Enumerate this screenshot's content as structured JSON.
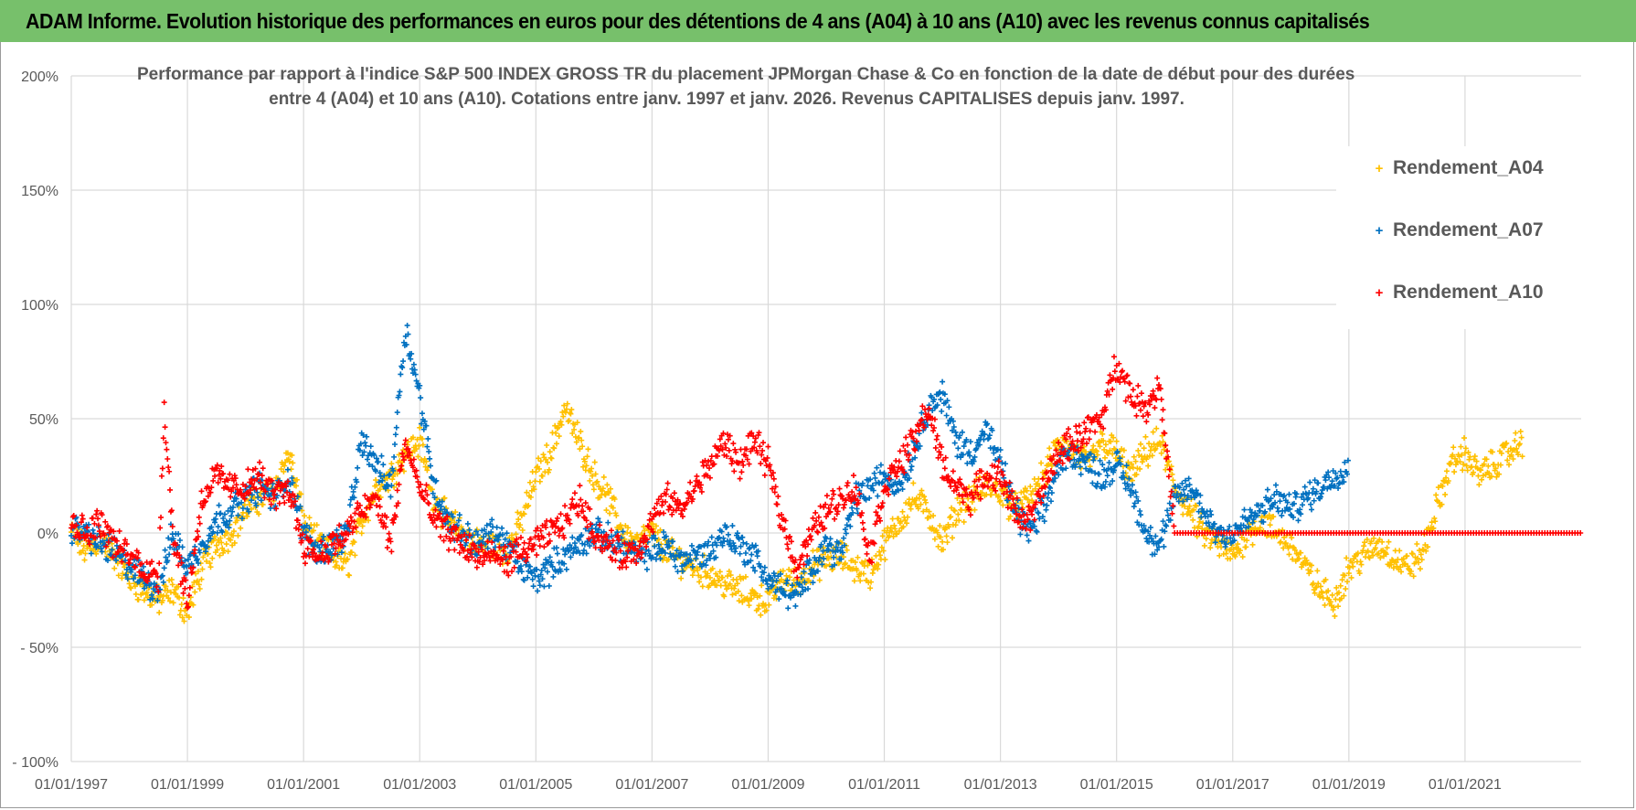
{
  "banner": {
    "title": "ADAM Informe. Evolution historique des performances en euros pour des détentions de 4 ans (A04) à 10 ans (A10) avec les revenus connus capitalisés"
  },
  "colors": {
    "banner_bg": "#77c06b",
    "A04": "#ffc000",
    "A07": "#0070c0",
    "A10": "#ff0000",
    "grid": "#d9d9d9",
    "text": "#595959"
  },
  "chart_data": {
    "type": "scatter",
    "title_line1": "Performance par rapport à l'indice S&P 500 INDEX GROSS TR  du placement JPMorgan Chase & Co en fonction de la date de début pour des durées",
    "title_line2": "entre 4 (A04) et 10 ans (A10).  Cotations entre janv. 1997 et janv. 2026. Revenus CAPITALISES depuis janv. 1997.",
    "xlabel": "",
    "ylabel": "",
    "x_range": [
      1997.0,
      2023.0
    ],
    "ylim": [
      -100,
      200
    ],
    "y_ticks": [
      -100,
      -50,
      0,
      50,
      100,
      150,
      200
    ],
    "y_tick_labels": [
      "- 100%",
      "- 50%",
      "0%",
      "50%",
      "100%",
      "150%",
      "200%"
    ],
    "x_ticks": [
      1997,
      1999,
      2001,
      2003,
      2005,
      2007,
      2009,
      2011,
      2013,
      2015,
      2017,
      2019,
      2021
    ],
    "x_tick_labels": [
      "01/01/1997",
      "01/01/1999",
      "01/01/2001",
      "01/01/2003",
      "01/01/2005",
      "01/01/2007",
      "01/01/2009",
      "01/01/2011",
      "01/01/2013",
      "01/01/2015",
      "01/01/2017",
      "01/01/2019",
      "01/01/2021"
    ],
    "legend_position": "top-right",
    "series": [
      {
        "name": "Rendement_A04",
        "color": "#ffc000",
        "x": [
          1997.0,
          1997.25,
          1997.5,
          1997.75,
          1998.0,
          1998.25,
          1998.5,
          1998.75,
          1999.0,
          1999.25,
          1999.5,
          1999.75,
          2000.0,
          2000.25,
          2000.5,
          2000.75,
          2001.0,
          2001.25,
          2001.5,
          2001.75,
          2002.0,
          2002.25,
          2002.5,
          2002.75,
          2003.0,
          2003.25,
          2003.5,
          2003.75,
          2004.0,
          2004.25,
          2004.5,
          2004.75,
          2005.0,
          2005.25,
          2005.5,
          2005.75,
          2006.0,
          2006.25,
          2006.5,
          2006.75,
          2007.0,
          2007.25,
          2007.5,
          2007.75,
          2008.0,
          2008.25,
          2008.5,
          2008.75,
          2009.0,
          2009.25,
          2009.5,
          2009.75,
          2010.0,
          2010.25,
          2010.5,
          2010.75,
          2011.0,
          2011.25,
          2011.5,
          2011.75,
          2012.0,
          2012.25,
          2012.5,
          2012.75,
          2013.0,
          2013.25,
          2013.5,
          2013.75,
          2014.0,
          2014.25,
          2014.5,
          2014.75,
          2015.0,
          2015.25,
          2015.5,
          2015.75,
          2016.0,
          2016.25,
          2016.5,
          2016.75,
          2017.0,
          2017.25,
          2017.5,
          2017.75,
          2018.0,
          2018.25,
          2018.5,
          2018.75,
          2019.0,
          2019.25,
          2019.5,
          2019.75,
          2020.0,
          2020.25,
          2020.5,
          2020.75,
          2021.0,
          2021.25,
          2021.5,
          2021.75,
          2022.0
        ],
        "y": [
          0,
          -8,
          -3,
          -10,
          -20,
          -25,
          -30,
          -25,
          -35,
          -15,
          -5,
          0,
          10,
          15,
          20,
          35,
          5,
          -5,
          -10,
          -15,
          5,
          20,
          25,
          35,
          40,
          15,
          5,
          0,
          -5,
          -5,
          -8,
          5,
          25,
          35,
          55,
          40,
          25,
          15,
          0,
          -5,
          0,
          -8,
          -12,
          -15,
          -18,
          -22,
          -25,
          -28,
          -30,
          -20,
          -22,
          -15,
          -12,
          -10,
          -15,
          -18,
          -5,
          5,
          15,
          10,
          -5,
          10,
          15,
          20,
          18,
          10,
          15,
          25,
          40,
          35,
          30,
          40,
          35,
          25,
          35,
          40,
          20,
          10,
          0,
          -5,
          -10,
          0,
          5,
          0,
          -5,
          -15,
          -25,
          -30,
          -15,
          -10,
          -5,
          -10,
          -15,
          -10,
          10,
          30,
          35,
          25,
          30,
          35,
          40
        ]
      },
      {
        "name": "Rendement_A07",
        "color": "#0070c0",
        "x": [
          1997.0,
          1997.25,
          1997.5,
          1997.75,
          1998.0,
          1998.25,
          1998.5,
          1998.75,
          1999.0,
          1999.25,
          1999.5,
          1999.75,
          2000.0,
          2000.25,
          2000.5,
          2000.75,
          2001.0,
          2001.25,
          2001.5,
          2001.75,
          2002.0,
          2002.25,
          2002.5,
          2002.75,
          2003.0,
          2003.25,
          2003.5,
          2003.75,
          2004.0,
          2004.25,
          2004.5,
          2004.75,
          2005.0,
          2005.25,
          2005.5,
          2005.75,
          2006.0,
          2006.25,
          2006.5,
          2006.75,
          2007.0,
          2007.25,
          2007.5,
          2007.75,
          2008.0,
          2008.25,
          2008.5,
          2008.75,
          2009.0,
          2009.25,
          2009.5,
          2009.75,
          2010.0,
          2010.25,
          2010.5,
          2010.75,
          2011.0,
          2011.25,
          2011.5,
          2011.75,
          2012.0,
          2012.25,
          2012.5,
          2012.75,
          2013.0,
          2013.25,
          2013.5,
          2013.75,
          2014.0,
          2014.25,
          2014.5,
          2014.75,
          2015.0,
          2015.25,
          2015.5,
          2015.75,
          2016.0,
          2016.25,
          2016.5,
          2016.75,
          2017.0,
          2017.25,
          2017.5,
          2017.75,
          2018.0,
          2018.25,
          2018.5,
          2018.75,
          2019.0
        ],
        "y": [
          2,
          0,
          -5,
          -8,
          -15,
          -20,
          -25,
          0,
          -15,
          -5,
          5,
          10,
          15,
          20,
          15,
          25,
          0,
          -8,
          -5,
          0,
          40,
          30,
          20,
          90,
          60,
          20,
          5,
          0,
          -5,
          0,
          -5,
          -15,
          -20,
          -15,
          -10,
          -5,
          0,
          -3,
          -5,
          -10,
          -8,
          -5,
          -12,
          -10,
          -8,
          0,
          -5,
          -10,
          -20,
          -25,
          -28,
          -15,
          -5,
          -10,
          15,
          20,
          25,
          20,
          35,
          55,
          60,
          40,
          35,
          45,
          30,
          10,
          0,
          10,
          30,
          35,
          30,
          25,
          30,
          20,
          0,
          -5,
          15,
          20,
          10,
          0,
          0,
          5,
          10,
          15,
          10,
          15,
          20,
          25,
          30
        ]
      },
      {
        "name": "Rendement_A10",
        "color": "#ff0000",
        "x": [
          1997.0,
          1997.25,
          1997.5,
          1997.75,
          1998.0,
          1998.25,
          1998.5,
          1998.6,
          1998.75,
          1999.0,
          1999.25,
          1999.5,
          1999.75,
          2000.0,
          2000.25,
          2000.5,
          2000.75,
          2001.0,
          2001.25,
          2001.5,
          2001.75,
          2002.0,
          2002.25,
          2002.5,
          2002.75,
          2003.0,
          2003.25,
          2003.5,
          2003.75,
          2004.0,
          2004.25,
          2004.5,
          2004.75,
          2005.0,
          2005.25,
          2005.5,
          2005.75,
          2006.0,
          2006.25,
          2006.5,
          2006.75,
          2007.0,
          2007.25,
          2007.5,
          2007.75,
          2008.0,
          2008.25,
          2008.5,
          2008.75,
          2009.0,
          2009.25,
          2009.5,
          2009.75,
          2010.0,
          2010.25,
          2010.5,
          2010.75,
          2011.0,
          2011.25,
          2011.5,
          2011.75,
          2012.0,
          2012.25,
          2012.5,
          2012.75,
          2013.0,
          2013.25,
          2013.5,
          2013.75,
          2014.0,
          2014.25,
          2014.5,
          2014.75,
          2015.0,
          2015.25,
          2015.5,
          2015.75,
          2016.0
        ],
        "y": [
          5,
          0,
          5,
          -5,
          -10,
          -15,
          -20,
          55,
          0,
          -30,
          15,
          25,
          20,
          20,
          25,
          15,
          20,
          -5,
          -10,
          -5,
          0,
          10,
          15,
          -5,
          40,
          20,
          5,
          0,
          -5,
          -10,
          -10,
          -12,
          -8,
          -5,
          0,
          5,
          15,
          0,
          -5,
          -10,
          -8,
          5,
          15,
          10,
          20,
          30,
          40,
          30,
          40,
          30,
          5,
          -15,
          0,
          10,
          15,
          20,
          -10,
          20,
          30,
          40,
          55,
          30,
          20,
          15,
          25,
          25,
          10,
          5,
          20,
          35,
          40,
          45,
          50,
          75,
          60,
          55,
          65,
          0
        ],
        "flat_segment": {
          "x_start": 2016.0,
          "x_end": 2023.0,
          "y": 0
        }
      }
    ]
  }
}
